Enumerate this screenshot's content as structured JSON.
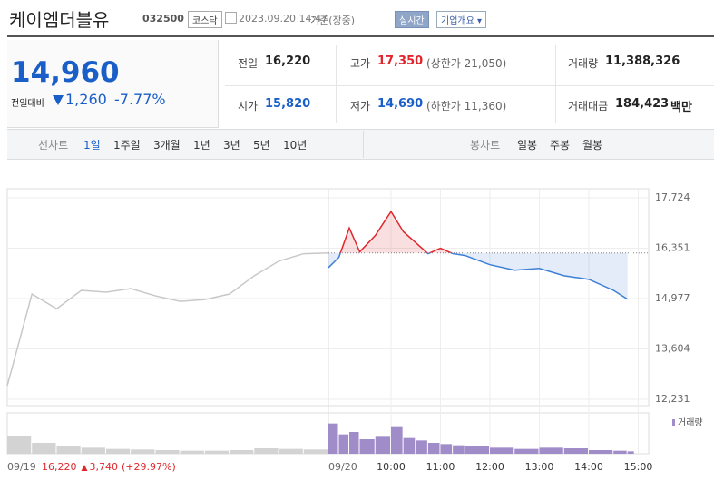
{
  "header": {
    "name": "케이엠더블유",
    "code": "032500",
    "market": "코스닥",
    "datetime": "2023.09.20 14:47",
    "basis": "기준(장중)",
    "realtime": "실시간",
    "company": "기업개요"
  },
  "price": {
    "current": "14,960",
    "change_label": "전일대비",
    "change": "1,260",
    "change_pct": "-7.77%"
  },
  "stats": [
    {
      "label": "전일",
      "value": "16,220"
    },
    {
      "label": "고가",
      "value": "17,350",
      "extra": "(상한가 21,050)"
    },
    {
      "label": "거래량",
      "value": "11,388,326"
    },
    {
      "label": "시가",
      "value": "15,820"
    },
    {
      "label": "저가",
      "value": "14,690",
      "extra": "(하한가 11,360)"
    },
    {
      "label": "거래대금",
      "value": "184,423",
      "unit": "백만"
    }
  ],
  "tabs": {
    "line_label": "선차트",
    "line": [
      "1일",
      "1주일",
      "3개월",
      "1년",
      "3년",
      "5년",
      "10년"
    ],
    "candle_label": "봉차트",
    "candle": [
      "일봉",
      "주봉",
      "월봉"
    ]
  },
  "chart_data": {
    "type": "line",
    "ylim": [
      12058,
      17971
    ],
    "yticks": [
      {
        "value": 17724,
        "label": "17,724"
      },
      {
        "value": 16351,
        "label": "16,351"
      },
      {
        "value": 14977,
        "label": "14,977"
      },
      {
        "value": 13604,
        "label": "13,604"
      },
      {
        "value": 12231,
        "label": "12,231"
      }
    ],
    "baseline": 16220,
    "vlim": [
      0,
      3000000
    ],
    "volume_label": "거래량",
    "prev_day": {
      "date": "09/19",
      "close": "16,220",
      "change": "3,740",
      "change_pct": "(+29.97%)",
      "x": [
        "09:00",
        "09:30",
        "10:00",
        "10:30",
        "11:00",
        "11:30",
        "12:00",
        "12:30",
        "13:00",
        "13:30",
        "14:00",
        "14:30",
        "15:00",
        "15:30"
      ],
      "values": [
        12600,
        15100,
        14700,
        15200,
        15150,
        15250,
        15050,
        14900,
        14950,
        15100,
        15600,
        16000,
        16200,
        16220
      ],
      "volume": [
        1500000,
        900000,
        600000,
        500000,
        400000,
        350000,
        300000,
        250000,
        250000,
        300000,
        450000,
        400000,
        350000,
        300000
      ]
    },
    "today": {
      "date": "09/20",
      "xticks": [
        "10:00",
        "11:00",
        "12:00",
        "13:00",
        "14:00",
        "15:00"
      ],
      "x": [
        "09:00",
        "09:10",
        "09:20",
        "09:30",
        "09:45",
        "10:00",
        "10:15",
        "10:30",
        "10:45",
        "11:00",
        "11:15",
        "11:30",
        "12:00",
        "12:30",
        "13:00",
        "13:30",
        "14:00",
        "14:30",
        "14:47"
      ],
      "values": [
        15820,
        16100,
        16900,
        16250,
        16700,
        17350,
        16800,
        16500,
        16200,
        16350,
        16200,
        16150,
        15900,
        15750,
        15800,
        15600,
        15500,
        15200,
        14960
      ],
      "volume": [
        2500000,
        1600000,
        1800000,
        1200000,
        1400000,
        2200000,
        1300000,
        1100000,
        900000,
        800000,
        700000,
        600000,
        500000,
        400000,
        500000,
        450000,
        300000,
        250000,
        200000
      ]
    }
  }
}
